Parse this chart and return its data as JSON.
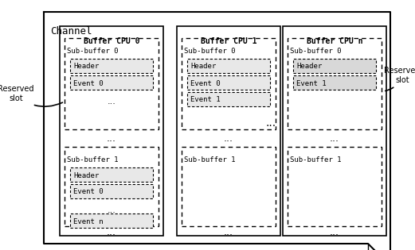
{
  "bg_color": "#ffffff",
  "figsize": [
    5.21,
    3.15
  ],
  "dpi": 100,
  "channel_label": "Channel",
  "buffer_labels": [
    "Buffer CPU 0",
    "Buffer CPU 1",
    "Buffer CPU n"
  ],
  "light_gray": "#d8d8d8",
  "white": "#ffffff",
  "mid_gray": "#c0c0c0"
}
